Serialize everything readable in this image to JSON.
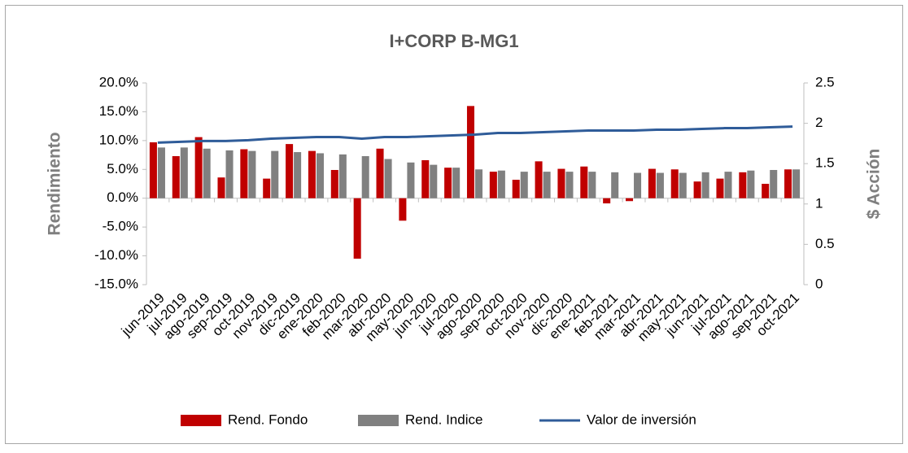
{
  "chart_data": {
    "type": "bar-line",
    "title": "I+CORP B-MG1",
    "y_label": "Rendimiento",
    "y2_label": "$ Acción",
    "categories": [
      "jun-2019",
      "jul-2019",
      "ago-2019",
      "sep-2019",
      "oct-2019",
      "nov-2019",
      "dic-2019",
      "ene-2020",
      "feb-2020",
      "mar-2020",
      "abr-2020",
      "may-2020",
      "jun-2020",
      "jul-2020",
      "ago-2020",
      "sep-2020",
      "oct-2020",
      "nov-2020",
      "dic-2020",
      "ene-2021",
      "feb-2021",
      "mar-2021",
      "abr-2021",
      "may-2021",
      "jun-2021",
      "jul-2021",
      "ago-2021",
      "sep-2021",
      "oct-2021"
    ],
    "series": [
      {
        "name": "Rend. Fondo",
        "color": "#c00000",
        "kind": "bar",
        "values": [
          9.7,
          7.3,
          10.6,
          3.6,
          8.5,
          3.4,
          9.4,
          8.2,
          4.9,
          -10.5,
          8.6,
          -3.9,
          6.6,
          5.3,
          16.0,
          4.6,
          3.2,
          6.4,
          5.1,
          5.5,
          -0.9,
          -0.5,
          5.1,
          5.0,
          2.9,
          3.4,
          4.5,
          2.5,
          5.0
        ]
      },
      {
        "name": "Rend. Indice",
        "color": "#808080",
        "kind": "bar",
        "values": [
          8.8,
          8.8,
          8.6,
          8.3,
          8.2,
          8.2,
          8.0,
          7.8,
          7.6,
          7.3,
          6.8,
          6.2,
          5.8,
          5.3,
          5.0,
          4.8,
          4.6,
          4.6,
          4.6,
          4.6,
          4.5,
          4.4,
          4.4,
          4.4,
          4.5,
          4.6,
          4.8,
          4.9,
          5.0
        ]
      },
      {
        "name": "Valor de inversión",
        "color": "#2f5c99",
        "kind": "line",
        "axis": "y2",
        "values": [
          1.76,
          1.77,
          1.78,
          1.78,
          1.79,
          1.81,
          1.82,
          1.83,
          1.83,
          1.81,
          1.83,
          1.83,
          1.84,
          1.85,
          1.86,
          1.88,
          1.88,
          1.89,
          1.9,
          1.91,
          1.91,
          1.91,
          1.92,
          1.92,
          1.93,
          1.94,
          1.94,
          1.95,
          1.96
        ]
      }
    ],
    "ylim": [
      -15,
      20
    ],
    "yticks": [
      {
        "value": -15,
        "label": "-15.0%"
      },
      {
        "value": -10,
        "label": "-10.0%"
      },
      {
        "value": -5,
        "label": "-5.0%"
      },
      {
        "value": 0,
        "label": "0.0%"
      },
      {
        "value": 5,
        "label": "5.0%"
      },
      {
        "value": 10,
        "label": "10.0%"
      },
      {
        "value": 15,
        "label": "15.0%"
      },
      {
        "value": 20,
        "label": "20.0%"
      }
    ],
    "y2lim": [
      0,
      2.5
    ],
    "y2ticks": [
      0,
      0.5,
      1,
      1.5,
      2,
      2.5
    ],
    "grid": false,
    "legend": "bottom"
  }
}
